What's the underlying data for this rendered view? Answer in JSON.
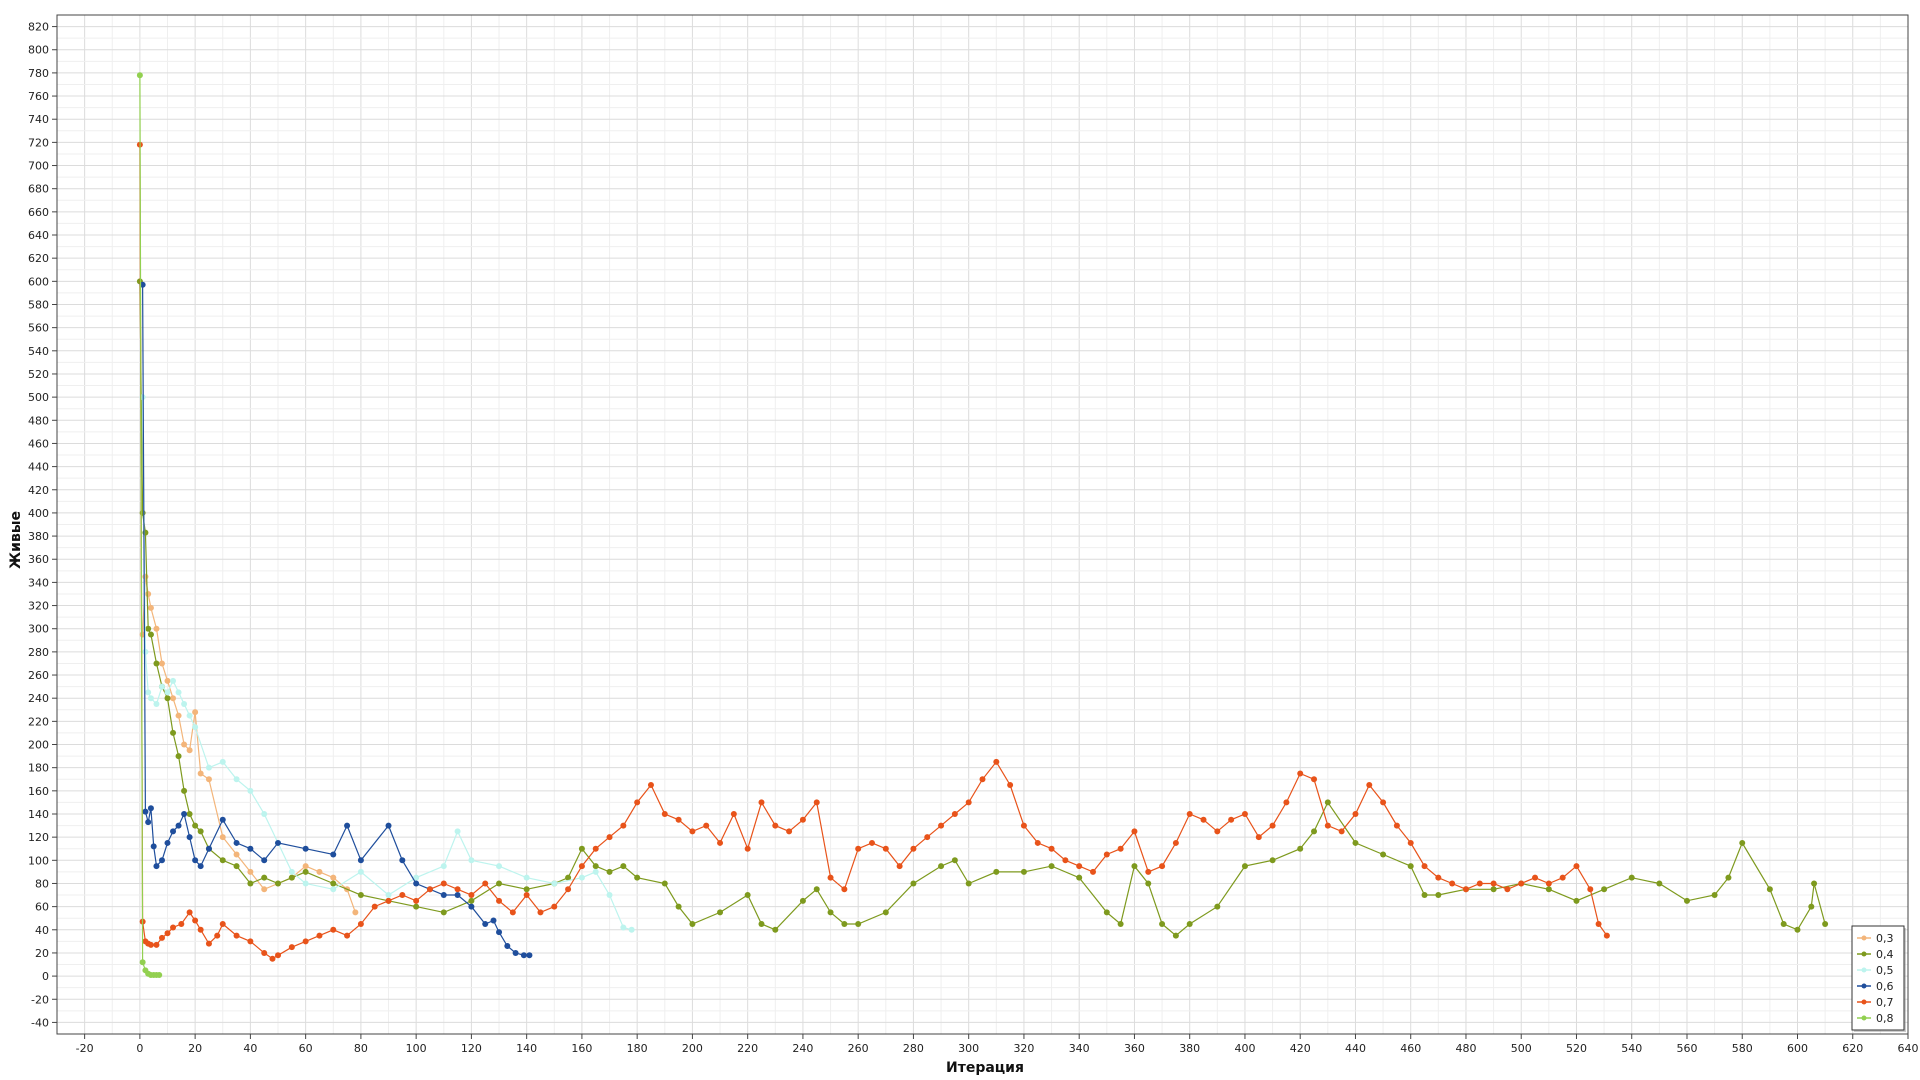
{
  "chart_data": {
    "type": "line",
    "xlabel": "Итерация",
    "ylabel": "Живые",
    "xlim": [
      -30,
      640
    ],
    "ylim": [
      -50,
      830
    ],
    "x_ticks": [
      -20,
      0,
      20,
      40,
      60,
      80,
      100,
      120,
      140,
      160,
      180,
      200,
      220,
      240,
      260,
      280,
      300,
      320,
      340,
      360,
      380,
      400,
      420,
      440,
      460,
      480,
      500,
      520,
      540,
      560,
      580,
      600,
      620,
      640
    ],
    "y_ticks": [
      -40,
      -20,
      0,
      20,
      40,
      60,
      80,
      100,
      120,
      140,
      160,
      180,
      200,
      220,
      240,
      260,
      280,
      300,
      320,
      340,
      360,
      380,
      400,
      420,
      440,
      460,
      480,
      500,
      520,
      540,
      560,
      580,
      600,
      620,
      640,
      660,
      680,
      700,
      720,
      740,
      760,
      780,
      800,
      820
    ],
    "grid": true,
    "legend_position": "bottom-right",
    "series": [
      {
        "name": "0,3",
        "color": "#F3B57A",
        "x": [
          1,
          2,
          3,
          4,
          6,
          8,
          10,
          12,
          14,
          16,
          18,
          20,
          22,
          25,
          30,
          35,
          40,
          45,
          50,
          55,
          60,
          65,
          70,
          75,
          78
        ],
        "y": [
          295,
          345,
          330,
          318,
          300,
          270,
          255,
          240,
          225,
          200,
          195,
          228,
          175,
          170,
          120,
          105,
          90,
          75,
          80,
          85,
          95,
          90,
          85,
          75,
          55
        ]
      },
      {
        "name": "0,4",
        "color": "#7E9A1E",
        "x": [
          0,
          1,
          2,
          3,
          4,
          6,
          8,
          10,
          12,
          14,
          16,
          18,
          20,
          22,
          25,
          30,
          35,
          40,
          45,
          50,
          55,
          60,
          70,
          80,
          90,
          100,
          110,
          120,
          130,
          140,
          150,
          155,
          160,
          165,
          170,
          175,
          180,
          190,
          195,
          200,
          210,
          220,
          225,
          230,
          240,
          245,
          250,
          255,
          260,
          270,
          280,
          290,
          295,
          300,
          310,
          320,
          330,
          340,
          350,
          355,
          360,
          365,
          370,
          375,
          380,
          390,
          400,
          410,
          420,
          425,
          430,
          440,
          450,
          460,
          465,
          470,
          480,
          490,
          500,
          510,
          520,
          530,
          540,
          550,
          560,
          570,
          575,
          580,
          590,
          595,
          600,
          605,
          606,
          610
        ],
        "y": [
          600,
          400,
          383,
          300,
          295,
          270,
          250,
          240,
          210,
          190,
          160,
          140,
          130,
          125,
          110,
          100,
          95,
          80,
          85,
          80,
          85,
          90,
          80,
          70,
          65,
          60,
          55,
          65,
          80,
          75,
          80,
          85,
          110,
          95,
          90,
          95,
          85,
          80,
          60,
          45,
          55,
          70,
          45,
          40,
          65,
          75,
          55,
          45,
          45,
          55,
          80,
          95,
          100,
          80,
          90,
          90,
          95,
          85,
          55,
          45,
          95,
          80,
          45,
          35,
          45,
          60,
          95,
          100,
          110,
          125,
          150,
          115,
          105,
          95,
          70,
          70,
          75,
          75,
          80,
          75,
          65,
          75,
          85,
          80,
          65,
          70,
          85,
          115,
          75,
          45,
          40,
          60,
          80,
          45
        ]
      },
      {
        "name": "0,5",
        "color": "#BDF4EE",
        "x": [
          1,
          2,
          3,
          4,
          6,
          8,
          10,
          12,
          14,
          16,
          18,
          20,
          25,
          30,
          35,
          40,
          45,
          50,
          55,
          60,
          70,
          80,
          90,
          100,
          110,
          115,
          120,
          130,
          140,
          150,
          160,
          165,
          170,
          175,
          178
        ],
        "y": [
          500,
          280,
          245,
          240,
          235,
          250,
          245,
          255,
          245,
          235,
          225,
          215,
          180,
          185,
          170,
          160,
          140,
          115,
          90,
          80,
          75,
          90,
          70,
          85,
          95,
          125,
          100,
          95,
          85,
          80,
          85,
          90,
          70,
          42,
          40
        ]
      },
      {
        "name": "0,6",
        "color": "#1F4E9C",
        "x": [
          1,
          2,
          3,
          4,
          5,
          6,
          8,
          10,
          12,
          14,
          16,
          18,
          20,
          22,
          25,
          30,
          35,
          40,
          45,
          50,
          60,
          70,
          75,
          80,
          90,
          95,
          100,
          105,
          110,
          115,
          120,
          125,
          128,
          130,
          133,
          136,
          139,
          141
        ],
        "y": [
          597,
          142,
          133,
          145,
          112,
          95,
          100,
          115,
          125,
          130,
          140,
          120,
          100,
          95,
          110,
          135,
          115,
          110,
          100,
          115,
          110,
          105,
          130,
          100,
          130,
          100,
          80,
          75,
          70,
          70,
          60,
          45,
          48,
          38,
          26,
          20,
          18,
          18
        ]
      },
      {
        "name": "0,7",
        "color": "#E8531A",
        "x": [
          0,
          1,
          2,
          3,
          4,
          6,
          8,
          10,
          12,
          15,
          18,
          20,
          22,
          25,
          28,
          30,
          35,
          40,
          45,
          48,
          50,
          55,
          60,
          65,
          70,
          75,
          80,
          85,
          90,
          95,
          100,
          105,
          110,
          115,
          120,
          125,
          130,
          135,
          140,
          145,
          150,
          155,
          160,
          165,
          170,
          175,
          180,
          185,
          190,
          195,
          200,
          205,
          210,
          215,
          220,
          225,
          230,
          235,
          240,
          245,
          250,
          255,
          260,
          265,
          270,
          275,
          280,
          285,
          290,
          295,
          300,
          305,
          310,
          315,
          320,
          325,
          330,
          335,
          340,
          345,
          350,
          355,
          360,
          365,
          370,
          375,
          380,
          385,
          390,
          395,
          400,
          405,
          410,
          415,
          420,
          425,
          430,
          435,
          440,
          445,
          450,
          455,
          460,
          465,
          470,
          475,
          480,
          485,
          490,
          495,
          500,
          505,
          510,
          515,
          520,
          525,
          528,
          531
        ],
        "y": [
          718,
          47,
          30,
          28,
          27,
          27,
          33,
          37,
          42,
          45,
          55,
          48,
          40,
          28,
          35,
          45,
          35,
          30,
          20,
          15,
          18,
          25,
          30,
          35,
          40,
          35,
          45,
          60,
          65,
          70,
          65,
          75,
          80,
          75,
          70,
          80,
          65,
          55,
          70,
          55,
          60,
          75,
          95,
          110,
          120,
          130,
          150,
          165,
          140,
          135,
          125,
          130,
          115,
          140,
          110,
          150,
          130,
          125,
          135,
          150,
          85,
          75,
          110,
          115,
          110,
          95,
          110,
          120,
          130,
          140,
          150,
          170,
          185,
          165,
          130,
          115,
          110,
          100,
          95,
          90,
          105,
          110,
          125,
          90,
          95,
          115,
          140,
          135,
          125,
          135,
          140,
          120,
          130,
          150,
          175,
          170,
          130,
          125,
          140,
          165,
          150,
          130,
          115,
          95,
          85,
          80,
          75,
          80,
          80,
          75,
          80,
          85,
          80,
          85,
          95,
          75,
          45,
          35
        ]
      },
      {
        "name": "0,8",
        "color": "#92D050",
        "x": [
          0,
          1,
          2,
          3,
          4,
          5,
          6,
          7
        ],
        "y": [
          778,
          12,
          5,
          2,
          1,
          1,
          1,
          1
        ]
      }
    ]
  }
}
